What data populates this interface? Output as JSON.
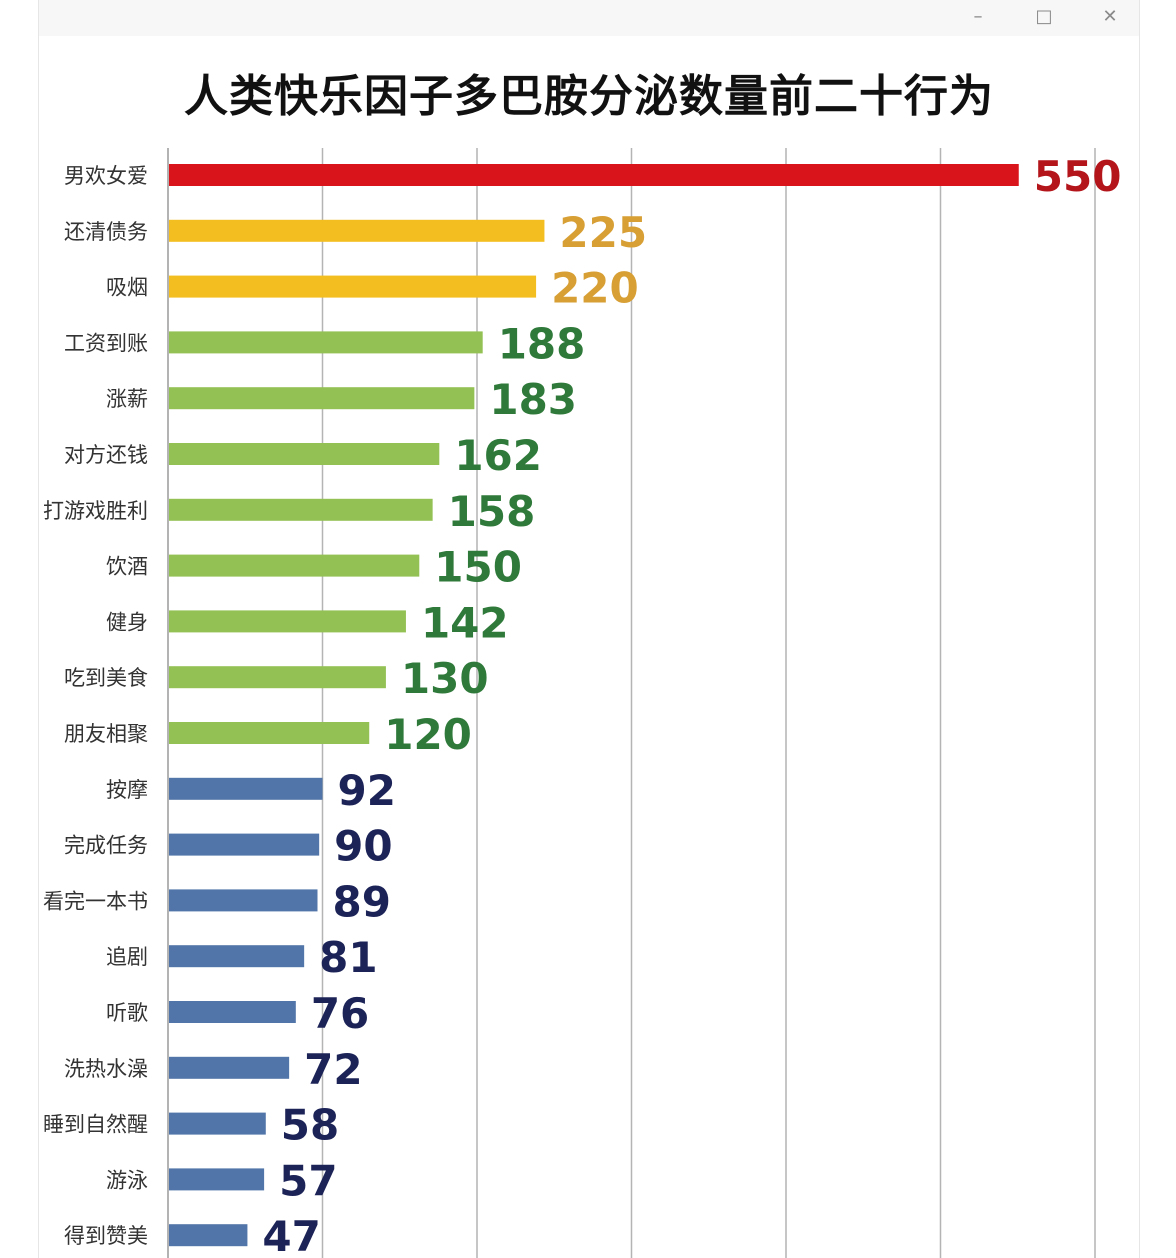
{
  "window": {
    "minimize_icon": "minimize-icon",
    "maximize_icon": "maximize-icon",
    "close_icon": "close-icon"
  },
  "chart_data": {
    "type": "bar",
    "orientation": "horizontal",
    "title": "人类快乐因子多巴胺分泌数量前二十行为",
    "categories": [
      "男欢女爱",
      "还清债务",
      "吸烟",
      "工资到账",
      "涨薪",
      "对方还钱",
      "打游戏胜利",
      "饮酒",
      "健身",
      "吃到美食",
      "朋友相聚",
      "按摩",
      "完成任务",
      "看完一本书",
      "追剧",
      "听歌",
      "洗热水澡",
      "睡到自然醒",
      "游泳",
      "得到赞美"
    ],
    "values": [
      550,
      225,
      220,
      188,
      183,
      162,
      158,
      150,
      142,
      130,
      120,
      92,
      90,
      89,
      81,
      76,
      72,
      58,
      57,
      47
    ],
    "value_labels": [
      "550",
      "225",
      "220",
      "188",
      "183",
      "162",
      "158",
      "150",
      "142",
      "130",
      "120",
      "92",
      "90",
      "89",
      "81",
      "76",
      "72",
      "58",
      "57",
      "47"
    ],
    "xlim": [
      0,
      600
    ],
    "grid": true,
    "colors": {
      "bar_top": "#d9141b",
      "bar_orange": "#f3be1f",
      "bar_green": "#93c154",
      "bar_blue": "#5175a8",
      "label_top": "#b3151b",
      "label_orange": "#d79f34",
      "label_green": "#2f7a3a",
      "label_blue": "#1c2357"
    }
  }
}
